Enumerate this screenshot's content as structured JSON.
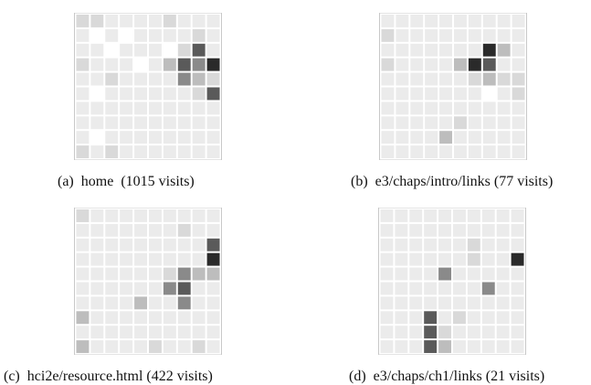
{
  "chart_data": [
    {
      "type": "heatmap",
      "rows": 10,
      "cols": 10,
      "caption_label": "(a)",
      "caption_text": "home  (1015 visits)",
      "palette": [
        "#ffffff",
        "#ebebeb",
        "#d9d9d9",
        "#bdbdbd",
        "#8a8a8a",
        "#5a5a5a",
        "#2a2a2a"
      ],
      "cells": [
        [
          2,
          2,
          1,
          1,
          1,
          1,
          2,
          1,
          1,
          1
        ],
        [
          1,
          0,
          1,
          0,
          1,
          1,
          1,
          1,
          2,
          1
        ],
        [
          1,
          1,
          0,
          1,
          1,
          1,
          0,
          2,
          5,
          1
        ],
        [
          2,
          1,
          1,
          1,
          0,
          1,
          3,
          5,
          4,
          6
        ],
        [
          1,
          1,
          2,
          1,
          1,
          1,
          1,
          4,
          3,
          2
        ],
        [
          1,
          0,
          1,
          1,
          1,
          1,
          1,
          1,
          2,
          5
        ],
        [
          1,
          1,
          1,
          1,
          1,
          1,
          1,
          1,
          1,
          1
        ],
        [
          1,
          1,
          1,
          1,
          1,
          1,
          1,
          1,
          1,
          1
        ],
        [
          1,
          0,
          1,
          1,
          1,
          1,
          1,
          1,
          1,
          1
        ],
        [
          2,
          1,
          2,
          1,
          1,
          1,
          1,
          1,
          1,
          1
        ]
      ]
    },
    {
      "type": "heatmap",
      "rows": 10,
      "cols": 10,
      "caption_label": "(b)",
      "caption_text": "e3/chaps/intro/links (77 visits)",
      "palette": [
        "#ffffff",
        "#ebebeb",
        "#d9d9d9",
        "#bdbdbd",
        "#8a8a8a",
        "#5a5a5a",
        "#2a2a2a"
      ],
      "cells": [
        [
          1,
          1,
          1,
          1,
          1,
          1,
          1,
          1,
          1,
          1
        ],
        [
          2,
          1,
          1,
          1,
          1,
          1,
          1,
          1,
          1,
          1
        ],
        [
          1,
          1,
          1,
          1,
          1,
          1,
          1,
          6,
          3,
          1
        ],
        [
          2,
          1,
          1,
          1,
          1,
          3,
          6,
          5,
          1,
          1
        ],
        [
          1,
          1,
          1,
          1,
          1,
          1,
          2,
          3,
          2,
          2
        ],
        [
          1,
          1,
          1,
          1,
          1,
          1,
          1,
          0,
          1,
          2
        ],
        [
          1,
          1,
          1,
          1,
          1,
          1,
          1,
          1,
          1,
          1
        ],
        [
          1,
          1,
          1,
          1,
          1,
          2,
          1,
          1,
          1,
          1
        ],
        [
          1,
          1,
          1,
          1,
          3,
          1,
          1,
          1,
          1,
          1
        ],
        [
          1,
          1,
          1,
          1,
          1,
          1,
          1,
          1,
          1,
          1
        ]
      ]
    },
    {
      "type": "heatmap",
      "rows": 10,
      "cols": 10,
      "caption_label": "(c)",
      "caption_text": "hci2e/resource.html (422 visits)",
      "palette": [
        "#ffffff",
        "#ebebeb",
        "#d9d9d9",
        "#bdbdbd",
        "#8a8a8a",
        "#5a5a5a",
        "#2a2a2a"
      ],
      "cells": [
        [
          2,
          1,
          1,
          1,
          1,
          1,
          1,
          1,
          1,
          1
        ],
        [
          1,
          1,
          1,
          1,
          1,
          1,
          1,
          2,
          1,
          1
        ],
        [
          1,
          1,
          1,
          1,
          1,
          1,
          1,
          1,
          1,
          5
        ],
        [
          1,
          1,
          1,
          1,
          1,
          1,
          1,
          1,
          1,
          6
        ],
        [
          1,
          1,
          1,
          1,
          1,
          1,
          2,
          4,
          3,
          3
        ],
        [
          1,
          1,
          1,
          1,
          1,
          1,
          4,
          5,
          1,
          1
        ],
        [
          1,
          1,
          1,
          1,
          3,
          1,
          1,
          4,
          1,
          1
        ],
        [
          3,
          1,
          1,
          1,
          1,
          1,
          1,
          1,
          1,
          1
        ],
        [
          1,
          1,
          1,
          1,
          1,
          1,
          1,
          1,
          1,
          1
        ],
        [
          3,
          1,
          1,
          1,
          1,
          2,
          1,
          1,
          2,
          1
        ]
      ]
    },
    {
      "type": "heatmap",
      "rows": 10,
      "cols": 10,
      "caption_label": "(d)",
      "caption_text": "e3/chaps/ch1/links (21 visits)",
      "palette": [
        "#ffffff",
        "#ebebeb",
        "#d9d9d9",
        "#bdbdbd",
        "#8a8a8a",
        "#5a5a5a",
        "#2a2a2a"
      ],
      "cells": [
        [
          1,
          1,
          1,
          1,
          1,
          1,
          1,
          1,
          1,
          1
        ],
        [
          1,
          1,
          1,
          1,
          1,
          1,
          1,
          1,
          1,
          1
        ],
        [
          1,
          1,
          1,
          1,
          1,
          1,
          2,
          1,
          1,
          1
        ],
        [
          1,
          1,
          1,
          1,
          1,
          1,
          2,
          1,
          1,
          6
        ],
        [
          1,
          1,
          1,
          1,
          4,
          1,
          1,
          1,
          1,
          1
        ],
        [
          1,
          1,
          1,
          1,
          1,
          1,
          1,
          4,
          1,
          1
        ],
        [
          1,
          1,
          1,
          1,
          1,
          1,
          1,
          1,
          1,
          1
        ],
        [
          1,
          1,
          1,
          5,
          1,
          2,
          1,
          1,
          1,
          1
        ],
        [
          1,
          1,
          1,
          5,
          2,
          1,
          1,
          1,
          1,
          1
        ],
        [
          1,
          1,
          1,
          5,
          3,
          1,
          1,
          1,
          1,
          1
        ]
      ]
    }
  ]
}
